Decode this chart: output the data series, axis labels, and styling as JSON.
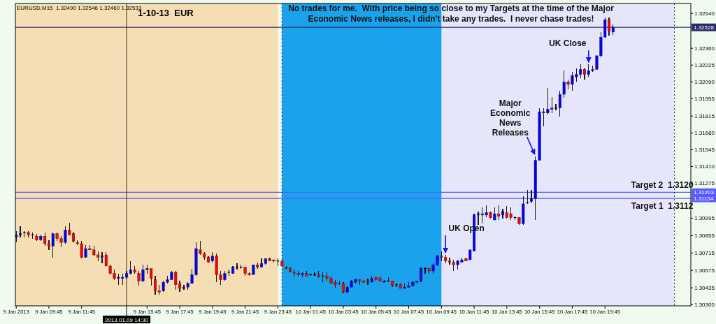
{
  "chart_data": {
    "type": "candlestick",
    "title": "1-10-13  EUR",
    "subtitle": "EURUSD,M15  1.32490 1.32546 1.32460 1.32533",
    "annotations": [
      "No trades for me.  With price being so close to my Targets at the time of the Major Economic News releases, I didn't take any trades.  I never chase trades!",
      {
        "text": "UK Open",
        "x": "2013-01-10T10:00",
        "y": 1.307
      },
      {
        "text": "Major Economic News Releases",
        "x": "2013-01-10T15:30",
        "y": 1.3149
      },
      {
        "text": "UK Close",
        "x": "2013-01-10T18:45",
        "y": 1.3223
      },
      {
        "text": "Target 2  1.3120",
        "x": "2013-01-10T23:15",
        "y": 1.31203
      },
      {
        "text": "Target 1  1.3112",
        "x": "2013-01-10T23:15",
        "y": 1.31154
      }
    ],
    "x": [
      "2013-01-09T07:45",
      "2013-01-09T08:00",
      "2013-01-09T08:15",
      "2013-01-09T08:30",
      "2013-01-09T08:45",
      "2013-01-09T09:00",
      "2013-01-09T09:15",
      "2013-01-09T09:30",
      "2013-01-09T09:45",
      "2013-01-09T10:00",
      "2013-01-09T10:15",
      "2013-01-09T10:30",
      "2013-01-09T10:45",
      "2013-01-09T11:00",
      "2013-01-09T11:15",
      "2013-01-09T11:30",
      "2013-01-09T11:45",
      "2013-01-09T12:00",
      "2013-01-09T12:15",
      "2013-01-09T12:30",
      "2013-01-09T12:45",
      "2013-01-09T13:00",
      "2013-01-09T13:15",
      "2013-01-09T13:30",
      "2013-01-09T13:45",
      "2013-01-09T14:00",
      "2013-01-09T14:15",
      "2013-01-09T14:30",
      "2013-01-09T14:45",
      "2013-01-09T15:00",
      "2013-01-09T15:15",
      "2013-01-09T15:30",
      "2013-01-09T15:45",
      "2013-01-09T16:00",
      "2013-01-09T16:15",
      "2013-01-09T16:30",
      "2013-01-09T16:45",
      "2013-01-09T17:00",
      "2013-01-09T17:15",
      "2013-01-09T17:30",
      "2013-01-09T17:45",
      "2013-01-09T18:00",
      "2013-01-09T18:15",
      "2013-01-09T18:30",
      "2013-01-09T18:45",
      "2013-01-09T19:00",
      "2013-01-09T19:15",
      "2013-01-09T19:30",
      "2013-01-09T19:45",
      "2013-01-09T20:00",
      "2013-01-09T20:15",
      "2013-01-09T20:30",
      "2013-01-09T20:45",
      "2013-01-09T21:00",
      "2013-01-09T21:15",
      "2013-01-09T21:30",
      "2013-01-09T21:45",
      "2013-01-09T22:00",
      "2013-01-09T22:15",
      "2013-01-09T22:30",
      "2013-01-09T22:45",
      "2013-01-09T23:00",
      "2013-01-09T23:15",
      "2013-01-09T23:30",
      "2013-01-09T23:45",
      "2013-01-10T00:00",
      "2013-01-10T00:15",
      "2013-01-10T00:30",
      "2013-01-10T00:45",
      "2013-01-10T01:00",
      "2013-01-10T01:15",
      "2013-01-10T01:30",
      "2013-01-10T01:45",
      "2013-01-10T02:00",
      "2013-01-10T02:15",
      "2013-01-10T02:30",
      "2013-01-10T02:45",
      "2013-01-10T03:00",
      "2013-01-10T03:15",
      "2013-01-10T03:30",
      "2013-01-10T03:45",
      "2013-01-10T04:00",
      "2013-01-10T04:15",
      "2013-01-10T04:30",
      "2013-01-10T04:45",
      "2013-01-10T05:00",
      "2013-01-10T05:15",
      "2013-01-10T05:30",
      "2013-01-10T05:45",
      "2013-01-10T06:00",
      "2013-01-10T06:15",
      "2013-01-10T06:30",
      "2013-01-10T06:45",
      "2013-01-10T07:00",
      "2013-01-10T07:15",
      "2013-01-10T07:30",
      "2013-01-10T07:45",
      "2013-01-10T08:00",
      "2013-01-10T08:15",
      "2013-01-10T08:30",
      "2013-01-10T08:45",
      "2013-01-10T09:00",
      "2013-01-10T09:15",
      "2013-01-10T09:30",
      "2013-01-10T09:45",
      "2013-01-10T10:00",
      "2013-01-10T10:15",
      "2013-01-10T10:30",
      "2013-01-10T10:45",
      "2013-01-10T11:00",
      "2013-01-10T11:15",
      "2013-01-10T11:30",
      "2013-01-10T11:45",
      "2013-01-10T12:00",
      "2013-01-10T12:15",
      "2013-01-10T12:30",
      "2013-01-10T12:45",
      "2013-01-10T13:00",
      "2013-01-10T13:15",
      "2013-01-10T13:30",
      "2013-01-10T13:45",
      "2013-01-10T14:00",
      "2013-01-10T14:15",
      "2013-01-10T14:30",
      "2013-01-10T14:45",
      "2013-01-10T15:00",
      "2013-01-10T15:15",
      "2013-01-10T15:30",
      "2013-01-10T15:45",
      "2013-01-10T16:00",
      "2013-01-10T16:15",
      "2013-01-10T16:30",
      "2013-01-10T16:45",
      "2013-01-10T17:00",
      "2013-01-10T17:15",
      "2013-01-10T17:30",
      "2013-01-10T17:45",
      "2013-01-10T18:00",
      "2013-01-10T18:15",
      "2013-01-10T18:30",
      "2013-01-10T18:45",
      "2013-01-10T19:00",
      "2013-01-10T19:15",
      "2013-01-10T19:30",
      "2013-01-10T19:45",
      "2013-01-10T20:00",
      "2013-01-10T20:15"
    ],
    "ohlc": [
      [
        1.3084,
        1.3089,
        1.308,
        1.3086
      ],
      [
        1.3086,
        1.3093,
        1.3084,
        1.3087
      ],
      [
        1.3088,
        1.3089,
        1.3084,
        1.3088
      ],
      [
        1.3088,
        1.3089,
        1.3084,
        1.3086
      ],
      [
        1.3086,
        1.3088,
        1.3083,
        1.3086
      ],
      [
        1.3085,
        1.3087,
        1.3081,
        1.3082
      ],
      [
        1.3082,
        1.3086,
        1.3081,
        1.3085
      ],
      [
        1.3085,
        1.3088,
        1.3077,
        1.3079
      ],
      [
        1.3079,
        1.3082,
        1.3074,
        1.3077
      ],
      [
        1.3077,
        1.3088,
        1.3068,
        1.3087
      ],
      [
        1.3087,
        1.3088,
        1.3081,
        1.3083
      ],
      [
        1.3083,
        1.3085,
        1.3076,
        1.308
      ],
      [
        1.308,
        1.3093,
        1.3079,
        1.309
      ],
      [
        1.309,
        1.3096,
        1.3086,
        1.3086
      ],
      [
        1.3087,
        1.3088,
        1.308,
        1.3081
      ],
      [
        1.308,
        1.3082,
        1.3078,
        1.3079
      ],
      [
        1.3079,
        1.3081,
        1.3067,
        1.3068
      ],
      [
        1.3068,
        1.3078,
        1.3068,
        1.3075
      ],
      [
        1.3075,
        1.3078,
        1.3074,
        1.3074
      ],
      [
        1.3074,
        1.3077,
        1.3069,
        1.307
      ],
      [
        1.307,
        1.3073,
        1.3065,
        1.3068
      ],
      [
        1.3068,
        1.3072,
        1.3063,
        1.3069
      ],
      [
        1.307,
        1.3072,
        1.3061,
        1.3061
      ],
      [
        1.3061,
        1.3062,
        1.3054,
        1.3055
      ],
      [
        1.3055,
        1.3058,
        1.305,
        1.3051
      ],
      [
        1.3051,
        1.3055,
        1.3046,
        1.3052
      ],
      [
        1.3051,
        1.3055,
        1.3046,
        1.3052
      ],
      [
        1.3052,
        1.3057,
        1.3051,
        1.3055
      ],
      [
        1.3055,
        1.3065,
        1.3054,
        1.3058
      ],
      [
        1.3058,
        1.3061,
        1.3055,
        1.3056
      ],
      [
        1.3055,
        1.3057,
        1.3045,
        1.3049
      ],
      [
        1.3049,
        1.3062,
        1.3048,
        1.3058
      ],
      [
        1.3058,
        1.3062,
        1.3055,
        1.3059
      ],
      [
        1.3059,
        1.3059,
        1.3045,
        1.3051
      ],
      [
        1.305,
        1.3053,
        1.3038,
        1.3041
      ],
      [
        1.3041,
        1.3046,
        1.3038,
        1.304
      ],
      [
        1.3041,
        1.3049,
        1.304,
        1.3048
      ],
      [
        1.3048,
        1.3053,
        1.3047,
        1.305
      ],
      [
        1.305,
        1.3057,
        1.305,
        1.3056
      ],
      [
        1.3056,
        1.3057,
        1.3042,
        1.3046
      ],
      [
        1.3047,
        1.3049,
        1.304,
        1.3043
      ],
      [
        1.3043,
        1.3046,
        1.3042,
        1.3044
      ],
      [
        1.3044,
        1.3048,
        1.3042,
        1.3047
      ],
      [
        1.3047,
        1.3059,
        1.3047,
        1.3054
      ],
      [
        1.3054,
        1.308,
        1.3053,
        1.3075
      ],
      [
        1.3074,
        1.3081,
        1.307,
        1.3071
      ],
      [
        1.3071,
        1.3072,
        1.3066,
        1.3068
      ],
      [
        1.3068,
        1.3069,
        1.3064,
        1.3064
      ],
      [
        1.3065,
        1.3072,
        1.3064,
        1.3069
      ],
      [
        1.3069,
        1.3071,
        1.3048,
        1.3054
      ],
      [
        1.3054,
        1.3057,
        1.3046,
        1.305
      ],
      [
        1.305,
        1.3057,
        1.3049,
        1.3055
      ],
      [
        1.3056,
        1.3058,
        1.3053,
        1.3056
      ],
      [
        1.3055,
        1.3061,
        1.3055,
        1.306
      ],
      [
        1.306,
        1.3063,
        1.3058,
        1.306
      ],
      [
        1.306,
        1.3062,
        1.3059,
        1.306
      ],
      [
        1.306,
        1.306,
        1.3053,
        1.3055
      ],
      [
        1.3055,
        1.3056,
        1.3053,
        1.3054
      ],
      [
        1.3054,
        1.3062,
        1.3054,
        1.3062
      ],
      [
        1.3062,
        1.3064,
        1.3059,
        1.306
      ],
      [
        1.306,
        1.3067,
        1.306,
        1.3063
      ],
      [
        1.3063,
        1.3067,
        1.3062,
        1.3067
      ],
      [
        1.3067,
        1.3068,
        1.3065,
        1.3065
      ],
      [
        1.3066,
        1.3066,
        1.3064,
        1.3065
      ],
      [
        1.3065,
        1.3067,
        1.3061,
        1.3065
      ],
      [
        1.3065,
        1.3066,
        1.3061,
        1.3061
      ],
      [
        1.306,
        1.3061,
        1.3058,
        1.3059
      ],
      [
        1.3059,
        1.306,
        1.3056,
        1.3057
      ],
      [
        1.3056,
        1.3058,
        1.3052,
        1.3055
      ],
      [
        1.3055,
        1.3057,
        1.3053,
        1.3054
      ],
      [
        1.3054,
        1.3056,
        1.3052,
        1.3055
      ],
      [
        1.3055,
        1.3057,
        1.3053,
        1.3053
      ],
      [
        1.3054,
        1.3055,
        1.3053,
        1.3054
      ],
      [
        1.3054,
        1.3056,
        1.3053,
        1.3054
      ],
      [
        1.3054,
        1.3057,
        1.3052,
        1.3052
      ],
      [
        1.3053,
        1.3056,
        1.3048,
        1.3053
      ],
      [
        1.3053,
        1.3056,
        1.3049,
        1.3051
      ],
      [
        1.3051,
        1.3053,
        1.3047,
        1.3047
      ],
      [
        1.3048,
        1.305,
        1.3043,
        1.3046
      ],
      [
        1.3047,
        1.3049,
        1.3046,
        1.3047
      ],
      [
        1.3047,
        1.3048,
        1.3039,
        1.304
      ],
      [
        1.304,
        1.3045,
        1.3039,
        1.3044
      ],
      [
        1.3044,
        1.305,
        1.3044,
        1.3049
      ],
      [
        1.3048,
        1.3051,
        1.3047,
        1.305
      ],
      [
        1.305,
        1.305,
        1.3046,
        1.3049
      ],
      [
        1.3049,
        1.305,
        1.3048,
        1.3048
      ],
      [
        1.3049,
        1.3051,
        1.3046,
        1.3048
      ],
      [
        1.3048,
        1.3053,
        1.3048,
        1.3051
      ],
      [
        1.3052,
        1.3052,
        1.3049,
        1.305
      ],
      [
        1.3051,
        1.3053,
        1.3048,
        1.3049
      ],
      [
        1.3048,
        1.305,
        1.3048,
        1.3049
      ],
      [
        1.3049,
        1.3052,
        1.3048,
        1.3049
      ],
      [
        1.3049,
        1.3049,
        1.3044,
        1.3045
      ],
      [
        1.3046,
        1.3047,
        1.3044,
        1.3046
      ],
      [
        1.3046,
        1.3047,
        1.3043,
        1.3043
      ],
      [
        1.3043,
        1.3047,
        1.3043,
        1.3044
      ],
      [
        1.3044,
        1.3048,
        1.3044,
        1.3045
      ],
      [
        1.3045,
        1.3049,
        1.3045,
        1.3048
      ],
      [
        1.3048,
        1.3049,
        1.3047,
        1.3049
      ],
      [
        1.3049,
        1.306,
        1.3048,
        1.3059
      ],
      [
        1.3059,
        1.306,
        1.3055,
        1.3059
      ],
      [
        1.3059,
        1.306,
        1.3055,
        1.3057
      ],
      [
        1.3057,
        1.3063,
        1.3055,
        1.3062
      ],
      [
        1.3062,
        1.307,
        1.3061,
        1.3069
      ],
      [
        1.3069,
        1.3073,
        1.3065,
        1.3068
      ],
      [
        1.3068,
        1.307,
        1.3063,
        1.3065
      ],
      [
        1.3065,
        1.3068,
        1.3062,
        1.3064
      ],
      [
        1.3064,
        1.3066,
        1.3057,
        1.3062
      ],
      [
        1.3062,
        1.3066,
        1.3058,
        1.3065
      ],
      [
        1.3064,
        1.3068,
        1.3064,
        1.3066
      ],
      [
        1.3067,
        1.3068,
        1.3065,
        1.3065
      ],
      [
        1.3066,
        1.3074,
        1.3066,
        1.3074
      ],
      [
        1.3073,
        1.3103,
        1.3073,
        1.3102
      ],
      [
        1.3102,
        1.3105,
        1.3094,
        1.3103
      ],
      [
        1.3102,
        1.3108,
        1.3095,
        1.3103
      ],
      [
        1.3102,
        1.311,
        1.31,
        1.3104
      ],
      [
        1.3104,
        1.3105,
        1.3099,
        1.31
      ],
      [
        1.3098,
        1.3108,
        1.3098,
        1.3103
      ],
      [
        1.3103,
        1.311,
        1.3098,
        1.3101
      ],
      [
        1.3102,
        1.3107,
        1.3099,
        1.3105
      ],
      [
        1.3104,
        1.3109,
        1.3099,
        1.31
      ],
      [
        1.3103,
        1.3108,
        1.3098,
        1.31
      ],
      [
        1.31,
        1.3101,
        1.3098,
        1.31
      ],
      [
        1.31,
        1.31,
        1.3094,
        1.3095
      ],
      [
        1.3095,
        1.3117,
        1.3094,
        1.3111
      ],
      [
        1.3112,
        1.3122,
        1.3111,
        1.3112
      ],
      [
        1.3113,
        1.3122,
        1.3112,
        1.3115
      ],
      [
        1.3115,
        1.3149,
        1.3098,
        1.3146
      ],
      [
        1.3146,
        1.3188,
        1.3146,
        1.3185
      ],
      [
        1.3185,
        1.3188,
        1.3173,
        1.3184
      ],
      [
        1.3184,
        1.3204,
        1.3183,
        1.3187
      ],
      [
        1.3187,
        1.3197,
        1.3184,
        1.3188
      ],
      [
        1.3188,
        1.3191,
        1.3186,
        1.3188
      ],
      [
        1.3188,
        1.3202,
        1.3181,
        1.3199
      ],
      [
        1.3199,
        1.3218,
        1.3196,
        1.3209
      ],
      [
        1.3209,
        1.3211,
        1.3203,
        1.3207
      ],
      [
        1.3207,
        1.3217,
        1.3202,
        1.3214
      ],
      [
        1.3213,
        1.322,
        1.3209,
        1.3215
      ],
      [
        1.3215,
        1.3223,
        1.3212,
        1.3219
      ],
      [
        1.3219,
        1.322,
        1.3211,
        1.3215
      ],
      [
        1.3215,
        1.3223,
        1.3213,
        1.3218
      ],
      [
        1.3218,
        1.3222,
        1.3217,
        1.3219
      ],
      [
        1.3219,
        1.323,
        1.3219,
        1.323
      ],
      [
        1.323,
        1.3249,
        1.3229,
        1.3245
      ],
      [
        1.3245,
        1.3261,
        1.3244,
        1.3259
      ],
      [
        1.3259,
        1.3261,
        1.3246,
        1.325
      ],
      [
        1.3249,
        1.3255,
        1.3247,
        1.3253
      ]
    ],
    "xlim": [
      "2013-01-09T07:42",
      "2013-01-11T01:00"
    ],
    "ylim": [
      1.3029,
      1.3272
    ],
    "xticks": [
      {
        "value": "2013-01-09T07:45",
        "label": "9 Jan 2013"
      },
      {
        "value": "2013-01-09T09:45",
        "label": "9 Jan 09:45"
      },
      {
        "value": "2013-01-09T11:45",
        "label": "9 Jan 11:45"
      },
      {
        "value": "2013-01-09T15:45",
        "label": "9 Jan 15:45"
      },
      {
        "value": "2013-01-09T17:45",
        "label": "9 Jan 17:45"
      },
      {
        "value": "2013-01-09T19:45",
        "label": "9 Jan 19:45"
      },
      {
        "value": "2013-01-09T21:45",
        "label": "9 Jan 21:45"
      },
      {
        "value": "2013-01-09T23:45",
        "label": "9 Jan 23:45"
      },
      {
        "value": "2013-01-10T01:45",
        "label": "10 Jan 01:45"
      },
      {
        "value": "2013-01-10T03:45",
        "label": "10 Jan 03:45"
      },
      {
        "value": "2013-01-10T05:45",
        "label": "10 Jan 05:45"
      },
      {
        "value": "2013-01-10T07:45",
        "label": "10 Jan 07:45"
      },
      {
        "value": "2013-01-10T09:45",
        "label": "10 Jan 09:45"
      },
      {
        "value": "2013-01-10T11:45",
        "label": "10 Jan 11:45"
      },
      {
        "value": "2013-01-10T13:45",
        "label": "10 Jan 13:45"
      },
      {
        "value": "2013-01-10T15:45",
        "label": "10 Jan 15:45"
      },
      {
        "value": "2013-01-10T17:45",
        "label": "10 Jan 17:45"
      },
      {
        "value": "2013-01-10T19:45",
        "label": "10 Jan 19:45"
      }
    ],
    "yticks": [
      {
        "value": 1.3264,
        "label": "1.32640"
      },
      {
        "value": 1.3236,
        "label": "1.32360"
      },
      1.32225,
      {
        "value": 1.3209,
        "label": "1.32090"
      },
      1.31955,
      1.31815,
      {
        "value": 1.3168,
        "label": "1.31680"
      },
      1.31545,
      {
        "value": 1.3141,
        "label": "1.31410"
      },
      1.31275,
      1.30995,
      1.30855,
      1.30715,
      1.30575,
      1.30435,
      {
        "value": 1.303,
        "label": "1.30300"
      }
    ],
    "bands": [
      {
        "axis": "x",
        "from": "2013-01-10T00:00",
        "to": "2013-01-11T00:00",
        "color": "#e6e6fa"
      },
      {
        "axis": "x",
        "from": "2013-01-09T07:42",
        "to": "2013-01-09T23:45",
        "color": "#f5deb3"
      },
      {
        "axis": "x",
        "from": "2013-01-10T00:00",
        "to": "2013-01-10T09:45",
        "color": "#1aa3ec"
      }
    ],
    "ref_lines": [
      {
        "axis": "y",
        "value": 1.32528,
        "label": "1.32528",
        "color": "#2b2b6b"
      },
      {
        "axis": "y",
        "value": 1.31203,
        "label": "1.31203",
        "color": "#5a5aff"
      },
      {
        "axis": "y",
        "value": 1.31154,
        "label": "1.31154",
        "color": "#5a5aff"
      },
      {
        "axis": "x",
        "value": "2013-01-09T14:30",
        "label": "2013.01.09 14:30",
        "color": "#000000"
      },
      {
        "axis": "x",
        "value": "2013-01-10T00:00",
        "color": "#000000",
        "line_style": "dotted"
      },
      {
        "axis": "x",
        "value": "2013-01-11T00:00",
        "color": "#000000",
        "line_style": "dotted"
      }
    ]
  }
}
